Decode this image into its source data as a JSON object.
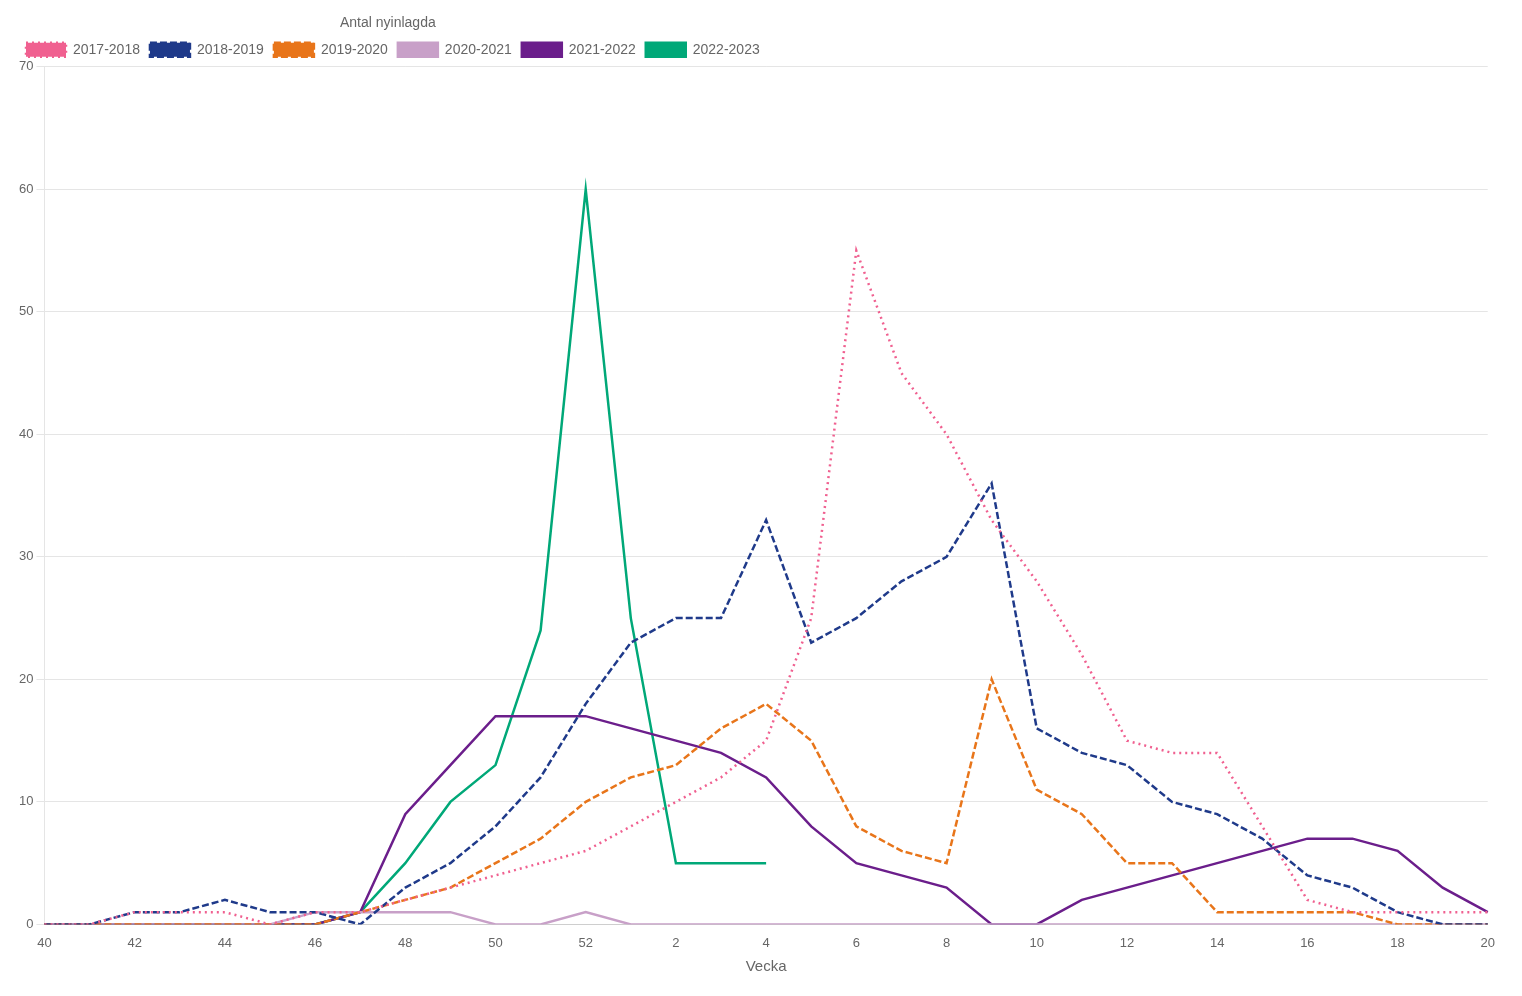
{
  "chart_data": {
    "type": "line",
    "xlabel": "Vecka",
    "legend_title": "Antal nyinlagda",
    "legend": "upper left",
    "grid": true,
    "categories": [
      "40",
      null,
      "42",
      null,
      "44",
      null,
      "46",
      null,
      "48",
      null,
      "50",
      null,
      "52",
      null,
      "2",
      null,
      "4",
      null,
      "6",
      null,
      "8",
      null,
      "10",
      null,
      "12",
      null,
      "14",
      null,
      "16",
      null,
      "18",
      null,
      "20"
    ],
    "ylim": [
      0,
      70
    ],
    "yticks": [
      0,
      10,
      20,
      30,
      40,
      50,
      60,
      70
    ],
    "series": [
      {
        "name": "2017-2018",
        "color": "#F06090",
        "line_style": "dotted",
        "values": [
          0,
          0,
          1,
          1,
          1,
          0,
          1,
          1,
          2,
          3,
          4,
          5,
          6,
          8,
          10,
          12,
          15,
          25,
          55,
          45,
          40,
          33,
          28,
          22,
          15,
          14,
          14,
          8,
          2,
          1,
          1,
          1,
          1
        ]
      },
      {
        "name": "2018-2019",
        "color": "#1F3A8A",
        "line_style": "dashed",
        "values": [
          0,
          0,
          1,
          1,
          2,
          1,
          1,
          0,
          3,
          5,
          8,
          12,
          18,
          23,
          25,
          25,
          33,
          23,
          25,
          28,
          30,
          36,
          16,
          14,
          13,
          10,
          9,
          7,
          4,
          3,
          1,
          0,
          0
        ]
      },
      {
        "name": "2019-2020",
        "color": "#E8751A",
        "line_style": "dashed",
        "values": [
          0,
          0,
          0,
          0,
          0,
          0,
          0,
          1,
          2,
          3,
          5,
          7,
          10,
          12,
          13,
          16,
          18,
          15,
          8,
          6,
          5,
          20,
          11,
          9,
          5,
          5,
          1,
          1,
          1,
          1,
          0,
          0,
          0
        ]
      },
      {
        "name": "2020-2021",
        "color": "#C8A0C8",
        "line_style": "solid",
        "values": [
          0,
          0,
          0,
          0,
          0,
          0,
          1,
          1,
          1,
          1,
          0,
          0,
          1,
          0,
          0,
          0,
          0,
          0,
          0,
          0,
          0,
          0,
          0,
          0,
          0,
          0,
          0,
          0,
          0,
          0,
          0,
          0,
          0
        ]
      },
      {
        "name": "2021-2022",
        "color": "#6B1E8B",
        "line_style": "solid",
        "values": [
          0,
          0,
          0,
          0,
          0,
          0,
          0,
          1,
          9,
          13,
          17,
          17,
          17,
          16,
          15,
          14,
          12,
          8,
          5,
          4,
          3,
          0,
          0,
          2,
          3,
          4,
          5,
          6,
          7,
          7,
          6,
          3,
          1
        ]
      },
      {
        "name": "2022-2023",
        "color": "#00A878",
        "line_style": "solid",
        "values": [
          0,
          0,
          0,
          0,
          0,
          0,
          0,
          1,
          5,
          10,
          13,
          24,
          60,
          25,
          5,
          5,
          5,
          null,
          null,
          null,
          null,
          null,
          null,
          null,
          null,
          null,
          null,
          null,
          null,
          null,
          null,
          null,
          null
        ]
      }
    ]
  }
}
